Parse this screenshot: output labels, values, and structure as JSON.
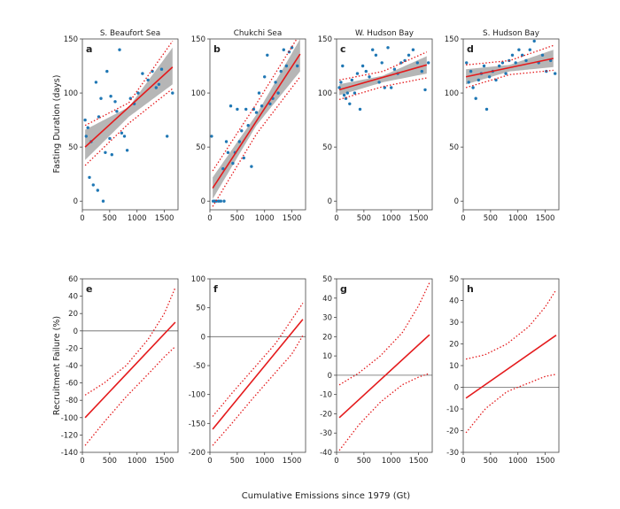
{
  "figure": {
    "xlabel_shared": "Cumulative Emissions since 1979 (Gt)",
    "ylabel_top": "Fasting Duration (days)",
    "ylabel_bottom": "Recruitment Failure (%)"
  },
  "chart_data": [
    {
      "id": "a",
      "panel_letter": "a",
      "type": "scatter",
      "title": "S. Beaufort Sea",
      "xlim": [
        0,
        1750
      ],
      "ylim": [
        -8,
        150
      ],
      "xticks": [
        0,
        500,
        1000,
        1500
      ],
      "yticks": [
        0,
        50,
        100,
        150
      ],
      "points": [
        [
          50,
          75
        ],
        [
          70,
          60
        ],
        [
          100,
          68
        ],
        [
          130,
          22
        ],
        [
          160,
          55
        ],
        [
          200,
          15
        ],
        [
          250,
          110
        ],
        [
          280,
          10
        ],
        [
          300,
          78
        ],
        [
          340,
          95
        ],
        [
          380,
          0
        ],
        [
          420,
          45
        ],
        [
          450,
          120
        ],
        [
          500,
          58
        ],
        [
          520,
          97
        ],
        [
          540,
          43
        ],
        [
          600,
          92
        ],
        [
          630,
          83
        ],
        [
          680,
          140
        ],
        [
          720,
          63
        ],
        [
          770,
          60
        ],
        [
          820,
          47
        ],
        [
          880,
          95
        ],
        [
          950,
          90
        ],
        [
          1020,
          100
        ],
        [
          1100,
          118
        ],
        [
          1200,
          112
        ],
        [
          1280,
          120
        ],
        [
          1350,
          105
        ],
        [
          1400,
          108
        ],
        [
          1450,
          122
        ],
        [
          1550,
          60
        ],
        [
          1650,
          100
        ]
      ],
      "fit": [
        [
          50,
          50
        ],
        [
          1650,
          124
        ]
      ],
      "ci_band": {
        "x": [
          50,
          850,
          1650
        ],
        "lower": [
          38,
          78,
          108
        ],
        "upper": [
          66,
          87,
          142
        ]
      },
      "pred_interval": {
        "x": [
          50,
          850,
          1650
        ],
        "lower": [
          33,
          72,
          104
        ],
        "upper": [
          70,
          91,
          148
        ]
      }
    },
    {
      "id": "b",
      "panel_letter": "b",
      "type": "scatter",
      "title": "Chukchi Sea",
      "xlim": [
        0,
        1750
      ],
      "ylim": [
        -8,
        150
      ],
      "xticks": [
        0,
        500,
        1000,
        1500
      ],
      "yticks": [
        0,
        50,
        100,
        150
      ],
      "points": [
        [
          30,
          60
        ],
        [
          60,
          0
        ],
        [
          90,
          0
        ],
        [
          120,
          0
        ],
        [
          160,
          0
        ],
        [
          200,
          0
        ],
        [
          240,
          30
        ],
        [
          260,
          0
        ],
        [
          300,
          55
        ],
        [
          330,
          45
        ],
        [
          380,
          88
        ],
        [
          420,
          35
        ],
        [
          460,
          45
        ],
        [
          500,
          85
        ],
        [
          540,
          55
        ],
        [
          580,
          65
        ],
        [
          620,
          40
        ],
        [
          660,
          85
        ],
        [
          700,
          70
        ],
        [
          760,
          32
        ],
        [
          800,
          85
        ],
        [
          850,
          82
        ],
        [
          900,
          100
        ],
        [
          950,
          88
        ],
        [
          1000,
          115
        ],
        [
          1050,
          135
        ],
        [
          1100,
          90
        ],
        [
          1150,
          95
        ],
        [
          1200,
          110
        ],
        [
          1250,
          100
        ],
        [
          1300,
          120
        ],
        [
          1350,
          140
        ],
        [
          1400,
          125
        ],
        [
          1450,
          138
        ],
        [
          1500,
          142
        ],
        [
          1600,
          125
        ]
      ],
      "fit": [
        [
          50,
          12
        ],
        [
          1650,
          136
        ]
      ],
      "ci_band": {
        "x": [
          50,
          850,
          1650
        ],
        "lower": [
          2,
          70,
          120
        ],
        "upper": [
          22,
          80,
          150
        ]
      },
      "pred_interval": {
        "x": [
          50,
          850,
          1650
        ],
        "lower": [
          -5,
          62,
          115
        ],
        "upper": [
          28,
          90,
          155
        ]
      }
    },
    {
      "id": "c",
      "panel_letter": "c",
      "type": "scatter",
      "title": "W. Hudson Bay",
      "xlim": [
        0,
        1750
      ],
      "ylim": [
        -8,
        150
      ],
      "xticks": [
        0,
        500,
        1000,
        1500
      ],
      "yticks": [
        0,
        50,
        100,
        150
      ],
      "points": [
        [
          50,
          105
        ],
        [
          80,
          110
        ],
        [
          110,
          125
        ],
        [
          140,
          98
        ],
        [
          170,
          95
        ],
        [
          200,
          100
        ],
        [
          240,
          90
        ],
        [
          280,
          112
        ],
        [
          330,
          100
        ],
        [
          380,
          118
        ],
        [
          430,
          85
        ],
        [
          480,
          125
        ],
        [
          540,
          120
        ],
        [
          600,
          115
        ],
        [
          660,
          140
        ],
        [
          720,
          135
        ],
        [
          780,
          110
        ],
        [
          830,
          128
        ],
        [
          880,
          105
        ],
        [
          940,
          142
        ],
        [
          1000,
          105
        ],
        [
          1060,
          122
        ],
        [
          1120,
          118
        ],
        [
          1180,
          128
        ],
        [
          1250,
          130
        ],
        [
          1320,
          135
        ],
        [
          1400,
          140
        ],
        [
          1480,
          128
        ],
        [
          1560,
          120
        ],
        [
          1620,
          103
        ],
        [
          1680,
          128
        ]
      ],
      "fit": [
        [
          50,
          103
        ],
        [
          1650,
          126
        ]
      ],
      "ci_band": {
        "x": [
          50,
          850,
          1650
        ],
        "lower": [
          98,
          110,
          118
        ],
        "upper": [
          108,
          116,
          134
        ]
      },
      "pred_interval": {
        "x": [
          50,
          850,
          1650
        ],
        "lower": [
          94,
          106,
          114
        ],
        "upper": [
          112,
          120,
          138
        ]
      }
    },
    {
      "id": "d",
      "panel_letter": "d",
      "type": "scatter",
      "title": "S. Hudson Bay",
      "xlim": [
        0,
        1750
      ],
      "ylim": [
        -8,
        150
      ],
      "xticks": [
        0,
        500,
        1000,
        1500
      ],
      "yticks": [
        0,
        50,
        100,
        150
      ],
      "points": [
        [
          60,
          128
        ],
        [
          100,
          110
        ],
        [
          140,
          120
        ],
        [
          180,
          105
        ],
        [
          230,
          95
        ],
        [
          280,
          112
        ],
        [
          330,
          118
        ],
        [
          380,
          125
        ],
        [
          430,
          85
        ],
        [
          480,
          115
        ],
        [
          540,
          120
        ],
        [
          600,
          112
        ],
        [
          660,
          125
        ],
        [
          720,
          128
        ],
        [
          780,
          118
        ],
        [
          840,
          130
        ],
        [
          900,
          135
        ],
        [
          960,
          128
        ],
        [
          1020,
          140
        ],
        [
          1080,
          135
        ],
        [
          1150,
          130
        ],
        [
          1220,
          140
        ],
        [
          1300,
          148
        ],
        [
          1380,
          128
        ],
        [
          1450,
          135
        ],
        [
          1520,
          120
        ],
        [
          1600,
          130
        ],
        [
          1680,
          118
        ]
      ],
      "fit": [
        [
          50,
          115
        ],
        [
          1650,
          132
        ]
      ],
      "ci_band": {
        "x": [
          50,
          850,
          1650
        ],
        "lower": [
          108,
          120,
          124
        ],
        "upper": [
          122,
          126,
          140
        ]
      },
      "pred_interval": {
        "x": [
          50,
          850,
          1650
        ],
        "lower": [
          105,
          117,
          121
        ],
        "upper": [
          126,
          130,
          144
        ]
      }
    },
    {
      "id": "e",
      "panel_letter": "e",
      "type": "line",
      "xlim": [
        0,
        1750
      ],
      "ylim": [
        -140,
        60
      ],
      "xticks": [
        0,
        500,
        1000,
        1500
      ],
      "yticks": [
        -140,
        -120,
        -100,
        -80,
        -60,
        -40,
        -20,
        0,
        20,
        40,
        60
      ],
      "line": [
        [
          50,
          -100
        ],
        [
          1700,
          10
        ]
      ],
      "upper": [
        [
          50,
          -74
        ],
        [
          400,
          -60
        ],
        [
          800,
          -40
        ],
        [
          1200,
          -10
        ],
        [
          1500,
          20
        ],
        [
          1700,
          50
        ]
      ],
      "lower": [
        [
          50,
          -132
        ],
        [
          400,
          -105
        ],
        [
          800,
          -76
        ],
        [
          1200,
          -50
        ],
        [
          1500,
          -30
        ],
        [
          1700,
          -18
        ]
      ]
    },
    {
      "id": "f",
      "panel_letter": "f",
      "type": "line",
      "xlim": [
        0,
        1750
      ],
      "ylim": [
        -200,
        100
      ],
      "xticks": [
        0,
        500,
        1000,
        1500
      ],
      "yticks": [
        -200,
        -150,
        -100,
        -50,
        0,
        50,
        100
      ],
      "line": [
        [
          50,
          -160
        ],
        [
          1700,
          30
        ]
      ],
      "upper": [
        [
          50,
          -138
        ],
        [
          400,
          -98
        ],
        [
          800,
          -55
        ],
        [
          1200,
          -12
        ],
        [
          1500,
          30
        ],
        [
          1700,
          58
        ]
      ],
      "lower": [
        [
          50,
          -188
        ],
        [
          400,
          -150
        ],
        [
          800,
          -105
        ],
        [
          1200,
          -62
        ],
        [
          1500,
          -30
        ],
        [
          1700,
          2
        ]
      ]
    },
    {
      "id": "g",
      "panel_letter": "g",
      "type": "line",
      "xlim": [
        0,
        1750
      ],
      "ylim": [
        -40,
        50
      ],
      "xticks": [
        0,
        500,
        1000,
        1500
      ],
      "yticks": [
        -40,
        -30,
        -20,
        -10,
        0,
        10,
        20,
        30,
        40,
        50
      ],
      "line": [
        [
          50,
          -22
        ],
        [
          1700,
          21
        ]
      ],
      "upper": [
        [
          50,
          -5
        ],
        [
          400,
          1
        ],
        [
          800,
          10
        ],
        [
          1200,
          22
        ],
        [
          1500,
          36
        ],
        [
          1700,
          48
        ]
      ],
      "lower": [
        [
          50,
          -39
        ],
        [
          400,
          -26
        ],
        [
          800,
          -14
        ],
        [
          1200,
          -5
        ],
        [
          1500,
          -1
        ],
        [
          1700,
          1
        ]
      ]
    },
    {
      "id": "h",
      "panel_letter": "h",
      "type": "line",
      "xlim": [
        0,
        1750
      ],
      "ylim": [
        -30,
        50
      ],
      "xticks": [
        0,
        500,
        1000,
        1500
      ],
      "yticks": [
        -30,
        -20,
        -10,
        0,
        10,
        20,
        30,
        40,
        50
      ],
      "line": [
        [
          50,
          -5
        ],
        [
          1700,
          24
        ]
      ],
      "upper": [
        [
          50,
          13
        ],
        [
          400,
          15
        ],
        [
          800,
          20
        ],
        [
          1200,
          28
        ],
        [
          1500,
          37
        ],
        [
          1700,
          45
        ]
      ],
      "lower": [
        [
          50,
          -21
        ],
        [
          400,
          -10
        ],
        [
          800,
          -2
        ],
        [
          1200,
          2
        ],
        [
          1500,
          5
        ],
        [
          1700,
          6
        ]
      ]
    }
  ]
}
